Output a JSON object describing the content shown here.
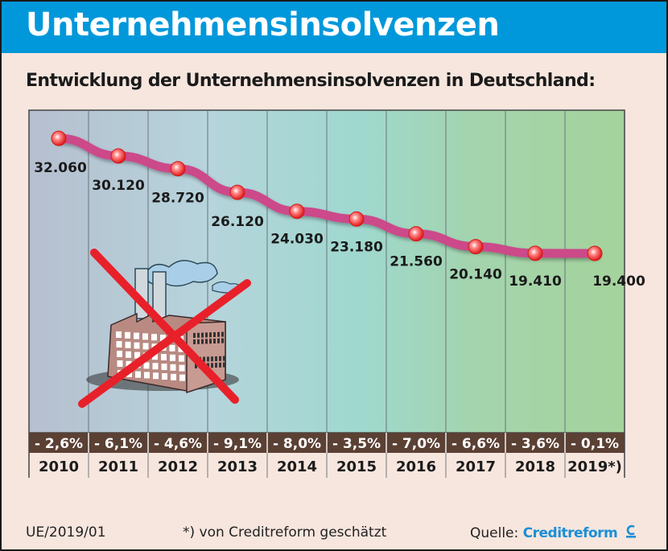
{
  "header": {
    "title": "Unternehmensinsolvenzen"
  },
  "subtitle": "Entwicklung der Unternehmensinsolvenzen in Deutschland:",
  "chart_data": {
    "type": "line",
    "title": "Entwicklung der Unternehmensinsolvenzen in Deutschland:",
    "categories": [
      "2010",
      "2011",
      "2012",
      "2013",
      "2014",
      "2015",
      "2016",
      "2017",
      "2018",
      "2019*)"
    ],
    "values": [
      32060,
      30120,
      28720,
      26120,
      24030,
      23180,
      21560,
      20140,
      19410,
      19400
    ],
    "value_labels": [
      "32.060",
      "30.120",
      "28.720",
      "26.120",
      "24.030",
      "23.180",
      "21.560",
      "20.140",
      "19.410",
      "19.400"
    ],
    "change_labels": [
      "- 2,6%",
      "- 6,1%",
      "- 4,6%",
      "- 9,1%",
      "- 8,0%",
      "- 3,5%",
      "- 7,0%",
      "- 6,6%",
      "- 3,6%",
      "- 0,1%"
    ],
    "xlabel": "",
    "ylabel": "",
    "ylim": [
      14000,
      34000
    ],
    "grid": "vertical",
    "colors": {
      "line": "#cc4a8a",
      "marker": "#ee2222",
      "change_band": "#5b4034"
    },
    "illustration": "crossed-out-factory"
  },
  "footer": {
    "code": "UE/2019/01",
    "note": "*) von Creditreform geschätzt",
    "source_label": "Quelle:",
    "source_brand": "Creditreform"
  }
}
